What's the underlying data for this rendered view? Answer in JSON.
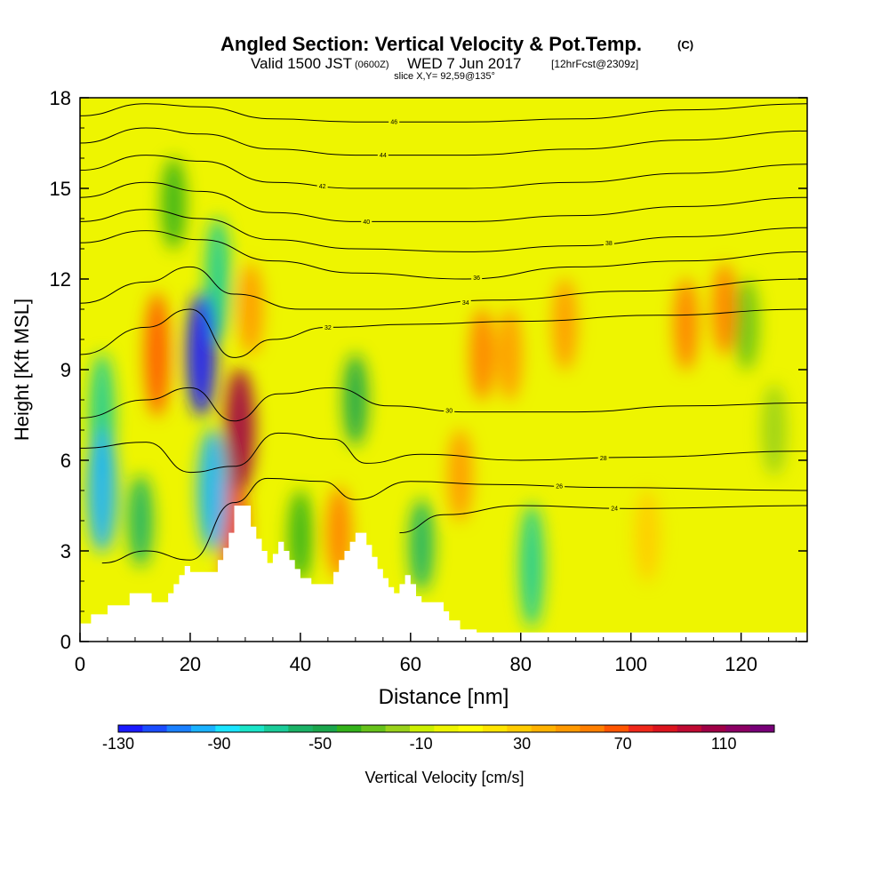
{
  "header": {
    "title_main": "Angled Section: Vertical Velocity & Pot.Temp.",
    "title_tag": "(C)",
    "subtitle_pre": "Valid 1500 JST",
    "subtitle_z": "(0600Z)",
    "subtitle_date": "WED 7 Jun 2017",
    "subtitle_fcst": "[12hrFcst@2309z]",
    "slice": "slice X,Y= 92,59@135°"
  },
  "chart_data": {
    "type": "heatmap",
    "xlabel": "Distance [nm]",
    "ylabel": "Height [Kft MSL]",
    "xlim": [
      0,
      132
    ],
    "ylim": [
      0,
      18
    ],
    "x_ticks": [
      0,
      20,
      40,
      60,
      80,
      100,
      120
    ],
    "y_ticks": [
      0,
      3,
      6,
      9,
      12,
      15,
      18
    ],
    "colorbar": {
      "label": "Vertical Velocity [cm/s]",
      "min": -130,
      "max": 130,
      "tick_labels": [
        "-130",
        "-90",
        "-50",
        "-10",
        "30",
        "70",
        "110"
      ],
      "colors": [
        "#1a1aff",
        "#1a4cff",
        "#1a80ff",
        "#1ab2ff",
        "#1ae5ff",
        "#1ae5c8",
        "#1acc99",
        "#1ab266",
        "#1aa64c",
        "#33b21a",
        "#66c21a",
        "#99d21a",
        "#ccf000",
        "#eef500",
        "#ffff00",
        "#ffe500",
        "#ffcc00",
        "#ffb200",
        "#ff9900",
        "#ff7f00",
        "#ff5500",
        "#f0281a",
        "#dc141e",
        "#c00a32",
        "#a00046",
        "#8c0064",
        "#780078"
      ]
    },
    "terrain": [
      [
        0,
        0.6
      ],
      [
        2,
        0.6
      ],
      [
        2,
        0.9
      ],
      [
        5,
        0.9
      ],
      [
        5,
        1.2
      ],
      [
        9,
        1.2
      ],
      [
        9,
        1.6
      ],
      [
        13,
        1.6
      ],
      [
        13,
        1.3
      ],
      [
        16,
        1.3
      ],
      [
        16,
        1.6
      ],
      [
        17,
        1.6
      ],
      [
        17,
        1.9
      ],
      [
        18,
        1.9
      ],
      [
        18,
        2.2
      ],
      [
        19,
        2.2
      ],
      [
        19,
        2.5
      ],
      [
        20,
        2.5
      ],
      [
        20,
        2.3
      ],
      [
        25,
        2.3
      ],
      [
        25,
        2.7
      ],
      [
        26,
        2.7
      ],
      [
        26,
        3.1
      ],
      [
        27,
        3.1
      ],
      [
        27,
        3.6
      ],
      [
        28,
        3.6
      ],
      [
        28,
        4.5
      ],
      [
        31,
        4.5
      ],
      [
        31,
        3.8
      ],
      [
        32,
        3.8
      ],
      [
        32,
        3.4
      ],
      [
        33,
        3.4
      ],
      [
        33,
        3.0
      ],
      [
        34,
        3.0
      ],
      [
        34,
        2.6
      ],
      [
        35,
        2.6
      ],
      [
        35,
        2.9
      ],
      [
        36,
        2.9
      ],
      [
        36,
        3.3
      ],
      [
        37,
        3.3
      ],
      [
        37,
        3.0
      ],
      [
        38,
        3.0
      ],
      [
        38,
        2.7
      ],
      [
        39,
        2.7
      ],
      [
        39,
        2.4
      ],
      [
        40,
        2.4
      ],
      [
        40,
        2.1
      ],
      [
        42,
        2.1
      ],
      [
        42,
        1.9
      ],
      [
        46,
        1.9
      ],
      [
        46,
        2.3
      ],
      [
        47,
        2.3
      ],
      [
        47,
        2.7
      ],
      [
        48,
        2.7
      ],
      [
        48,
        3.0
      ],
      [
        49,
        3.0
      ],
      [
        49,
        3.3
      ],
      [
        50,
        3.3
      ],
      [
        50,
        3.6
      ],
      [
        52,
        3.6
      ],
      [
        52,
        3.2
      ],
      [
        53,
        3.2
      ],
      [
        53,
        2.8
      ],
      [
        54,
        2.8
      ],
      [
        54,
        2.4
      ],
      [
        55,
        2.4
      ],
      [
        55,
        2.1
      ],
      [
        56,
        2.1
      ],
      [
        56,
        1.8
      ],
      [
        57,
        1.8
      ],
      [
        57,
        1.6
      ],
      [
        58,
        1.6
      ],
      [
        58,
        1.9
      ],
      [
        59,
        1.9
      ],
      [
        59,
        2.2
      ],
      [
        60,
        2.2
      ],
      [
        60,
        1.9
      ],
      [
        61,
        1.9
      ],
      [
        61,
        1.5
      ],
      [
        62,
        1.5
      ],
      [
        62,
        1.3
      ],
      [
        66,
        1.3
      ],
      [
        66,
        1.0
      ],
      [
        67,
        1.0
      ],
      [
        67,
        0.7
      ],
      [
        69,
        0.7
      ],
      [
        69,
        0.4
      ],
      [
        72,
        0.4
      ],
      [
        72,
        0.3
      ],
      [
        132,
        0.3
      ]
    ],
    "features": [
      {
        "x": 4,
        "z": 5.0,
        "w": -95
      },
      {
        "x": 4,
        "z": 7.5,
        "w": -65
      },
      {
        "x": 11,
        "z": 4.0,
        "w": -55
      },
      {
        "x": 14,
        "z": 9.5,
        "w": 65
      },
      {
        "x": 17,
        "z": 14.5,
        "w": -40
      },
      {
        "x": 22,
        "z": 9.5,
        "w": -125
      },
      {
        "x": 24,
        "z": 5.0,
        "w": -100
      },
      {
        "x": 25,
        "z": 12.0,
        "w": -70
      },
      {
        "x": 29,
        "z": 7.0,
        "w": 105
      },
      {
        "x": 28,
        "z": 3.6,
        "w": 80
      },
      {
        "x": 31,
        "z": 11.0,
        "w": 45
      },
      {
        "x": 40,
        "z": 3.5,
        "w": -40
      },
      {
        "x": 47,
        "z": 3.6,
        "w": 55
      },
      {
        "x": 50,
        "z": 8.0,
        "w": -45
      },
      {
        "x": 62,
        "z": 3.2,
        "w": -60
      },
      {
        "x": 69,
        "z": 5.5,
        "w": 50
      },
      {
        "x": 73,
        "z": 9.5,
        "w": 60
      },
      {
        "x": 78,
        "z": 9.5,
        "w": 45
      },
      {
        "x": 82,
        "z": 2.5,
        "w": -65
      },
      {
        "x": 88,
        "z": 10.5,
        "w": 45
      },
      {
        "x": 103,
        "z": 3.5,
        "w": 25
      },
      {
        "x": 110,
        "z": 10.5,
        "w": 55
      },
      {
        "x": 117,
        "z": 11.0,
        "w": 55
      },
      {
        "x": 121,
        "z": 10.5,
        "w": -30
      },
      {
        "x": 126,
        "z": 7.0,
        "w": -20
      }
    ],
    "isentropes": [
      {
        "label": "36",
        "lx": 72,
        "z": [
          [
            0,
            13.2
          ],
          [
            12,
            13.6
          ],
          [
            22,
            13.3
          ],
          [
            35,
            12.6
          ],
          [
            50,
            12.2
          ],
          [
            70,
            12.0
          ],
          [
            90,
            12.4
          ],
          [
            110,
            12.6
          ],
          [
            132,
            12.9
          ]
        ]
      },
      {
        "label": "38",
        "lx": 96,
        "z": [
          [
            0,
            13.9
          ],
          [
            12,
            14.3
          ],
          [
            22,
            14.0
          ],
          [
            35,
            13.3
          ],
          [
            50,
            13.0
          ],
          [
            70,
            12.9
          ],
          [
            90,
            13.1
          ],
          [
            110,
            13.4
          ],
          [
            132,
            13.7
          ]
        ]
      },
      {
        "label": "40",
        "lx": 52,
        "z": [
          [
            0,
            14.7
          ],
          [
            12,
            15.2
          ],
          [
            22,
            14.9
          ],
          [
            35,
            14.2
          ],
          [
            50,
            13.9
          ],
          [
            70,
            13.9
          ],
          [
            90,
            14.1
          ],
          [
            110,
            14.4
          ],
          [
            132,
            14.7
          ]
        ]
      },
      {
        "label": "42",
        "lx": 44,
        "z": [
          [
            0,
            15.6
          ],
          [
            12,
            16.1
          ],
          [
            22,
            15.9
          ],
          [
            35,
            15.2
          ],
          [
            50,
            15.0
          ],
          [
            70,
            15.0
          ],
          [
            90,
            15.2
          ],
          [
            110,
            15.5
          ],
          [
            132,
            15.8
          ]
        ]
      },
      {
        "label": "44",
        "lx": 55,
        "z": [
          [
            0,
            16.5
          ],
          [
            12,
            17.0
          ],
          [
            22,
            16.8
          ],
          [
            35,
            16.3
          ],
          [
            50,
            16.1
          ],
          [
            70,
            16.1
          ],
          [
            90,
            16.3
          ],
          [
            110,
            16.6
          ],
          [
            132,
            16.9
          ]
        ]
      },
      {
        "label": "46",
        "lx": 57,
        "z": [
          [
            0,
            17.4
          ],
          [
            12,
            17.8
          ],
          [
            22,
            17.7
          ],
          [
            35,
            17.3
          ],
          [
            50,
            17.2
          ],
          [
            70,
            17.2
          ],
          [
            90,
            17.3
          ],
          [
            110,
            17.6
          ],
          [
            132,
            17.8
          ]
        ]
      },
      {
        "label": "34",
        "lx": 70,
        "z": [
          [
            0,
            11.2
          ],
          [
            12,
            11.9
          ],
          [
            20,
            12.4
          ],
          [
            28,
            11.5
          ],
          [
            40,
            11.0
          ],
          [
            55,
            11.0
          ],
          [
            75,
            11.3
          ],
          [
            100,
            11.6
          ],
          [
            132,
            12.0
          ]
        ]
      },
      {
        "label": "32",
        "lx": 45,
        "z": [
          [
            0,
            9.5
          ],
          [
            12,
            10.4
          ],
          [
            20,
            11.0
          ],
          [
            28,
            9.4
          ],
          [
            35,
            10.0
          ],
          [
            45,
            10.4
          ],
          [
            60,
            10.5
          ],
          [
            80,
            10.6
          ],
          [
            105,
            10.8
          ],
          [
            132,
            11.0
          ]
        ]
      },
      {
        "label": "30",
        "lx": 67,
        "z": [
          [
            0,
            7.4
          ],
          [
            12,
            8.0
          ],
          [
            20,
            8.4
          ],
          [
            28,
            7.3
          ],
          [
            36,
            8.2
          ],
          [
            46,
            8.4
          ],
          [
            56,
            7.8
          ],
          [
            70,
            7.6
          ],
          [
            90,
            7.6
          ],
          [
            110,
            7.8
          ],
          [
            132,
            7.9
          ]
        ]
      },
      {
        "label": "28",
        "lx": 95,
        "z": [
          [
            0,
            6.4
          ],
          [
            12,
            6.6
          ],
          [
            20,
            5.6
          ],
          [
            28,
            5.8
          ],
          [
            36,
            6.9
          ],
          [
            46,
            6.7
          ],
          [
            52,
            5.9
          ],
          [
            62,
            6.2
          ],
          [
            80,
            6.0
          ],
          [
            100,
            6.1
          ],
          [
            132,
            6.3
          ]
        ]
      },
      {
        "label": "26",
        "lx": 87,
        "z": [
          [
            4,
            2.6
          ],
          [
            12,
            3.0
          ],
          [
            20,
            2.7
          ],
          [
            28,
            4.6
          ],
          [
            34,
            5.4
          ],
          [
            44,
            5.3
          ],
          [
            50,
            4.7
          ],
          [
            60,
            5.3
          ],
          [
            75,
            5.2
          ],
          [
            95,
            5.1
          ],
          [
            132,
            5.0
          ]
        ]
      },
      {
        "label": "24",
        "lx": 97,
        "z": [
          [
            58,
            3.6
          ],
          [
            66,
            4.2
          ],
          [
            80,
            4.5
          ],
          [
            100,
            4.4
          ],
          [
            132,
            4.5
          ]
        ]
      }
    ]
  }
}
